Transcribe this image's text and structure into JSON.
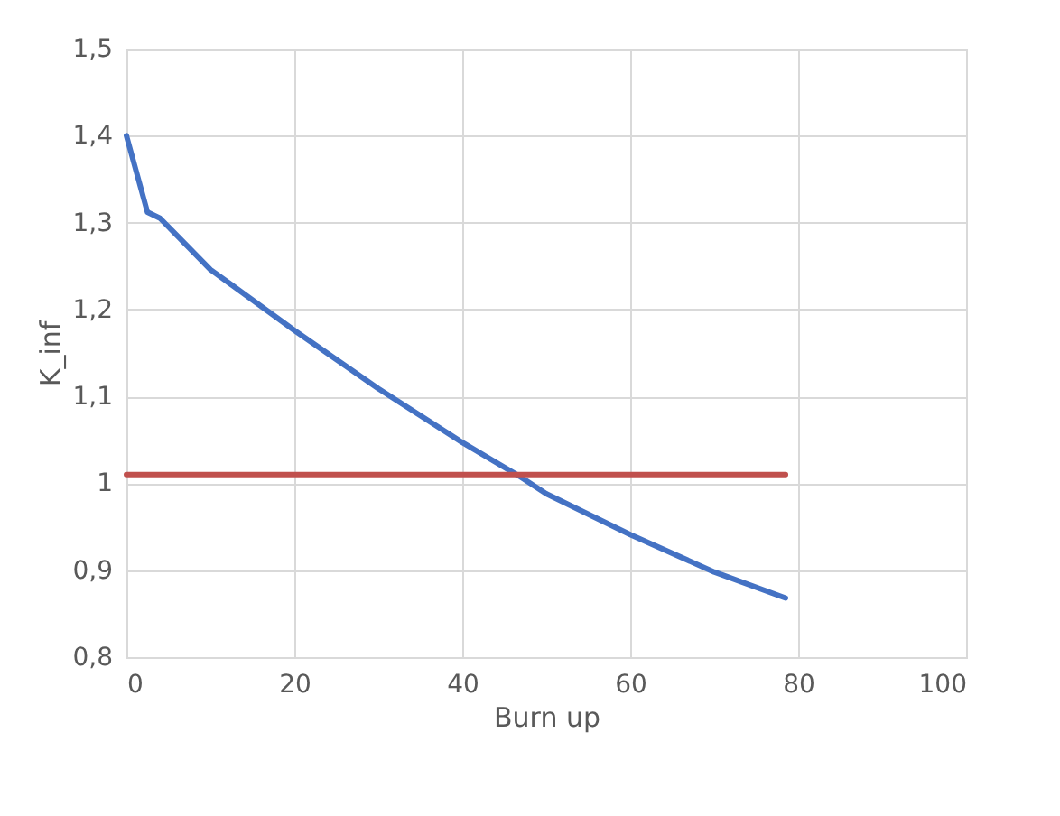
{
  "chart_data": {
    "type": "line",
    "xlabel": "Burn up",
    "ylabel": "K_inf",
    "xlim": [
      0,
      100
    ],
    "xticks": [
      0,
      20,
      40,
      60,
      80,
      100
    ],
    "ylim": [
      0.8,
      1.5
    ],
    "yticks": [
      {
        "value": 0.8,
        "label": "0,8"
      },
      {
        "value": 0.9,
        "label": "0,9"
      },
      1,
      {
        "value": 1.1,
        "label": "1,1"
      },
      {
        "value": 1.2,
        "label": "1,2"
      },
      {
        "value": 1.3,
        "label": "1,3"
      },
      {
        "value": 1.4,
        "label": "1,4"
      },
      {
        "value": 1.5,
        "label": "1,5"
      }
    ],
    "grid": true,
    "series": [
      {
        "color": "#4472c4",
        "x": [
          0,
          2.5,
          4,
          10,
          20,
          30,
          40,
          47,
          50,
          60,
          70,
          78.5
        ],
        "values": [
          1.4,
          1.312,
          1.305,
          1.246,
          1.176,
          1.109,
          1.047,
          1.007,
          0.988,
          0.941,
          0.898,
          0.868
        ]
      },
      {
        "color": "#c0504d",
        "x": [
          0,
          78.5
        ],
        "values": [
          1.01,
          1.01
        ]
      }
    ]
  }
}
